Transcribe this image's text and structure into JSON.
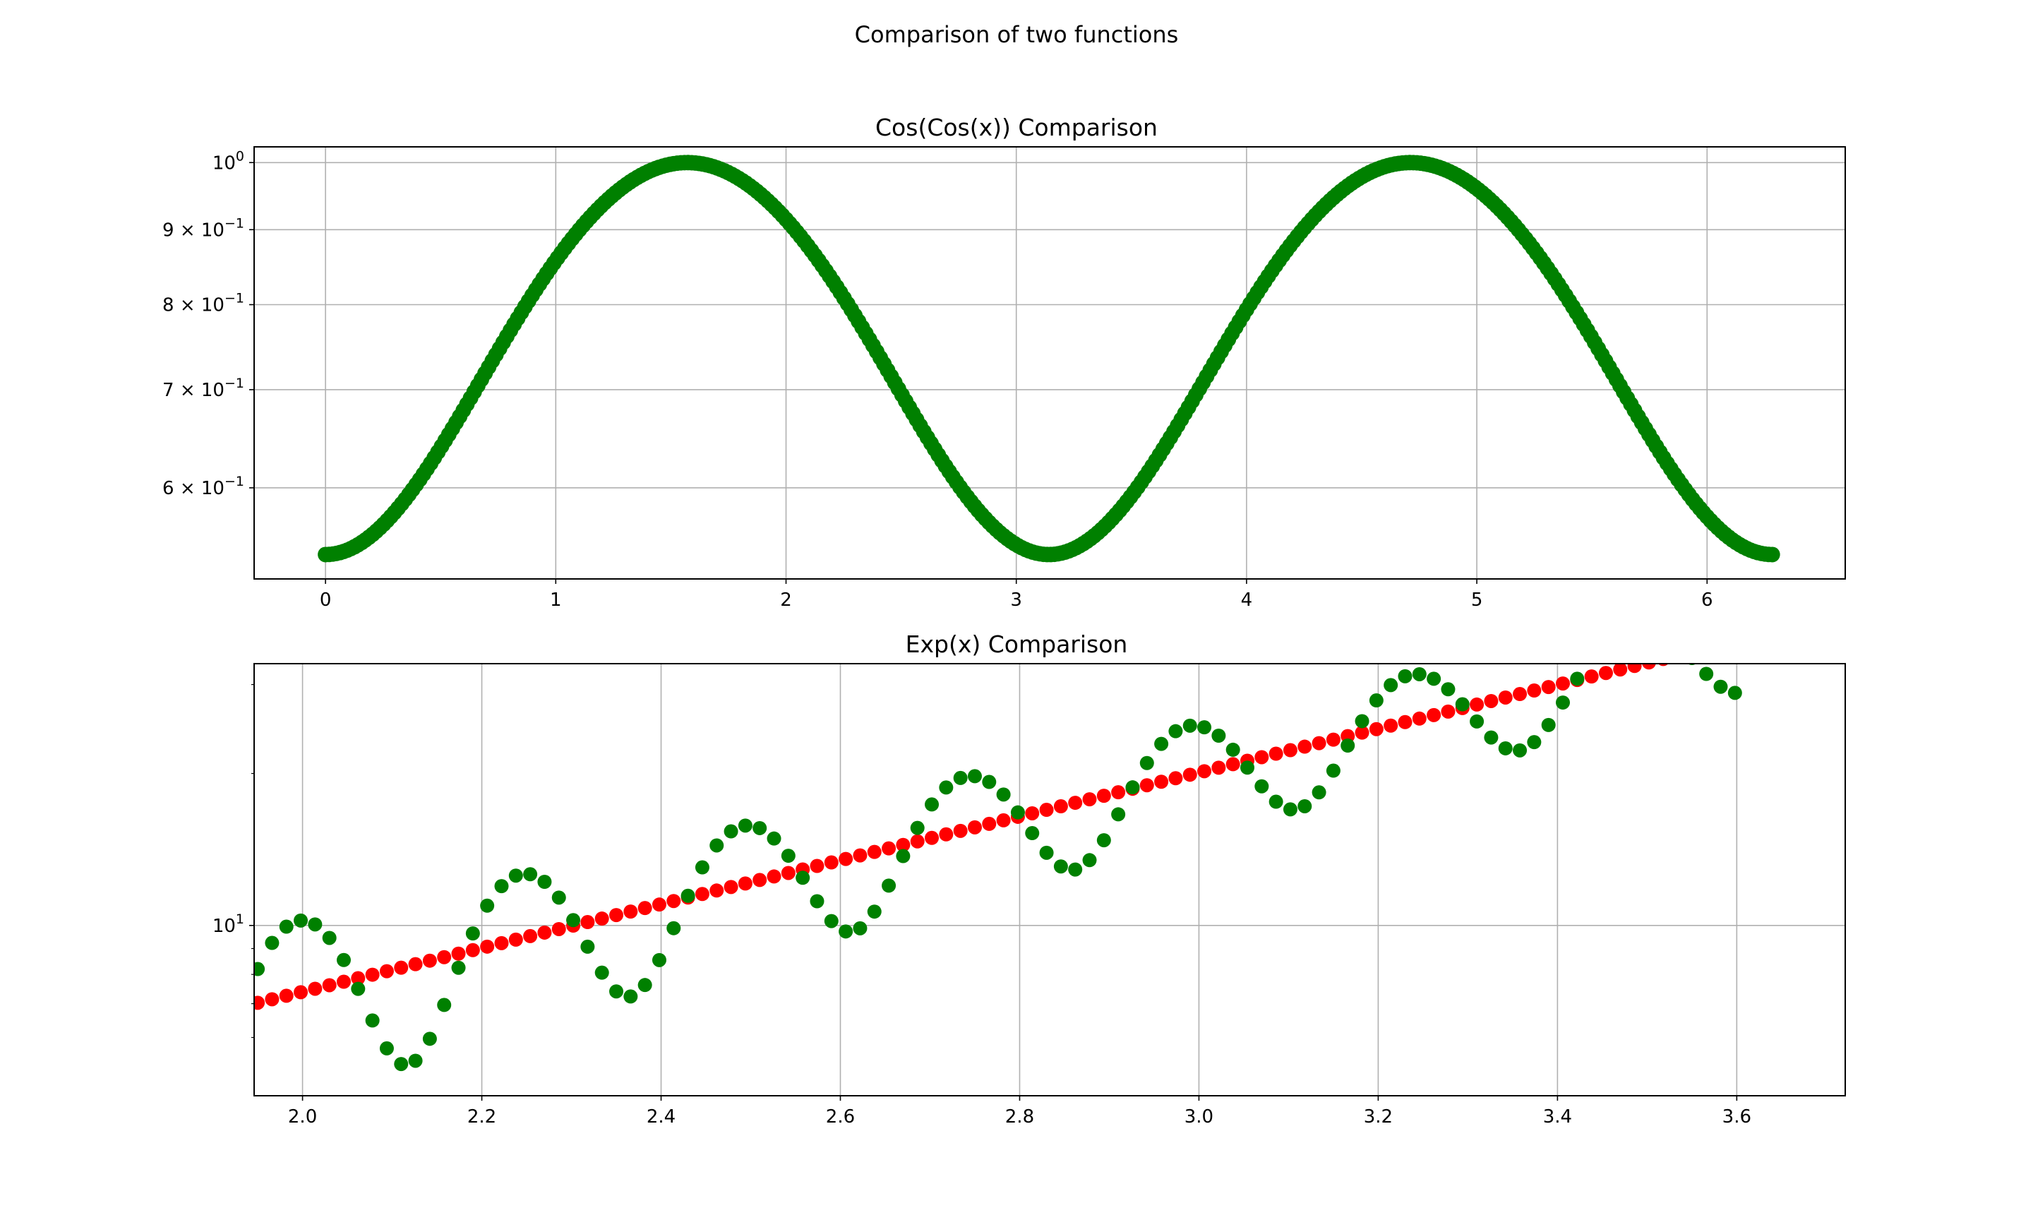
{
  "figure": {
    "title": "Comparison of two functions"
  },
  "chart_data": [
    {
      "type": "scatter",
      "title": "Cos(Cos(x)) Comparison",
      "xlabel": "",
      "ylabel": "",
      "yscale": "log",
      "xlim": [
        -0.31,
        6.6
      ],
      "ylim": [
        0.52,
        1.025
      ],
      "grid": true,
      "x_ticks": [
        {
          "value": 0,
          "label": "0"
        },
        {
          "value": 1,
          "label": "1"
        },
        {
          "value": 2,
          "label": "2"
        },
        {
          "value": 3,
          "label": "3"
        },
        {
          "value": 4,
          "label": "4"
        },
        {
          "value": 5,
          "label": "5"
        },
        {
          "value": 6,
          "label": "6"
        }
      ],
      "y_ticks": [
        {
          "value": 1.0,
          "base": "10",
          "exp": "0",
          "mantissa": ""
        },
        {
          "value": 0.9,
          "base": "10",
          "exp": "−1",
          "mantissa": "9 × "
        },
        {
          "value": 0.8,
          "base": "10",
          "exp": "−1",
          "mantissa": "8 × "
        },
        {
          "value": 0.7,
          "base": "10",
          "exp": "−1",
          "mantissa": "7 × "
        },
        {
          "value": 0.6,
          "base": "10",
          "exp": "−1",
          "mantissa": "6 × "
        }
      ],
      "series": [
        {
          "function": "cos(cos(x))",
          "color": "#008000",
          "x_range": [
            0,
            6.2832
          ],
          "points": 400,
          "sample_points": [
            [
              0,
              0.5403
            ],
            [
              1.5708,
              1.0
            ],
            [
              3.1416,
              0.5403
            ],
            [
              4.7124,
              1.0
            ],
            [
              6.2832,
              0.5403
            ]
          ]
        }
      ]
    },
    {
      "type": "scatter",
      "title": "Exp(x) Comparison",
      "xlabel": "",
      "ylabel": "",
      "yscale": "log",
      "xlim": [
        1.946,
        3.721
      ],
      "ylim": [
        4.6,
        33.0
      ],
      "grid": true,
      "x_ticks": [
        {
          "value": 2.0,
          "label": "2.0"
        },
        {
          "value": 2.2,
          "label": "2.2"
        },
        {
          "value": 2.4,
          "label": "2.4"
        },
        {
          "value": 2.6,
          "label": "2.6"
        },
        {
          "value": 2.8,
          "label": "2.8"
        },
        {
          "value": 3.0,
          "label": "3.0"
        },
        {
          "value": 3.2,
          "label": "3.2"
        },
        {
          "value": 3.4,
          "label": "3.4"
        },
        {
          "value": 3.6,
          "label": "3.6"
        }
      ],
      "y_ticks": [
        {
          "value": 10,
          "base": "10",
          "exp": "1",
          "mantissa": ""
        }
      ],
      "y_minor_ticks": [
        6,
        7,
        8,
        9,
        20,
        30
      ],
      "series": [
        {
          "function": "exp(x)",
          "color": "#ff0000",
          "x_range": [
            1.95,
            3.6
          ],
          "step": 0.016,
          "sample_points": [
            [
              1.95,
              7.03
            ],
            [
              2.3,
              9.97
            ],
            [
              2.6,
              13.46
            ],
            [
              3.0,
              20.09
            ],
            [
              3.3,
              27.11
            ]
          ]
        },
        {
          "function": "exp(x) + 4*sin(x*16*pi/... )",
          "color": "#008000",
          "x_range": [
            1.95,
            3.6
          ],
          "step": 0.016,
          "sample_points": [
            [
              1.96,
              10.5
            ],
            [
              2.1,
              4.8
            ],
            [
              2.23,
              11.2
            ],
            [
              2.34,
              7.2
            ],
            [
              2.47,
              14.0
            ],
            [
              2.58,
              9.9
            ],
            [
              2.72,
              19.6
            ],
            [
              2.84,
              15.0
            ],
            [
              2.97,
              24.8
            ],
            [
              3.08,
              20.2
            ],
            [
              3.22,
              30.2
            ],
            [
              3.32,
              26.0
            ]
          ]
        }
      ]
    }
  ]
}
